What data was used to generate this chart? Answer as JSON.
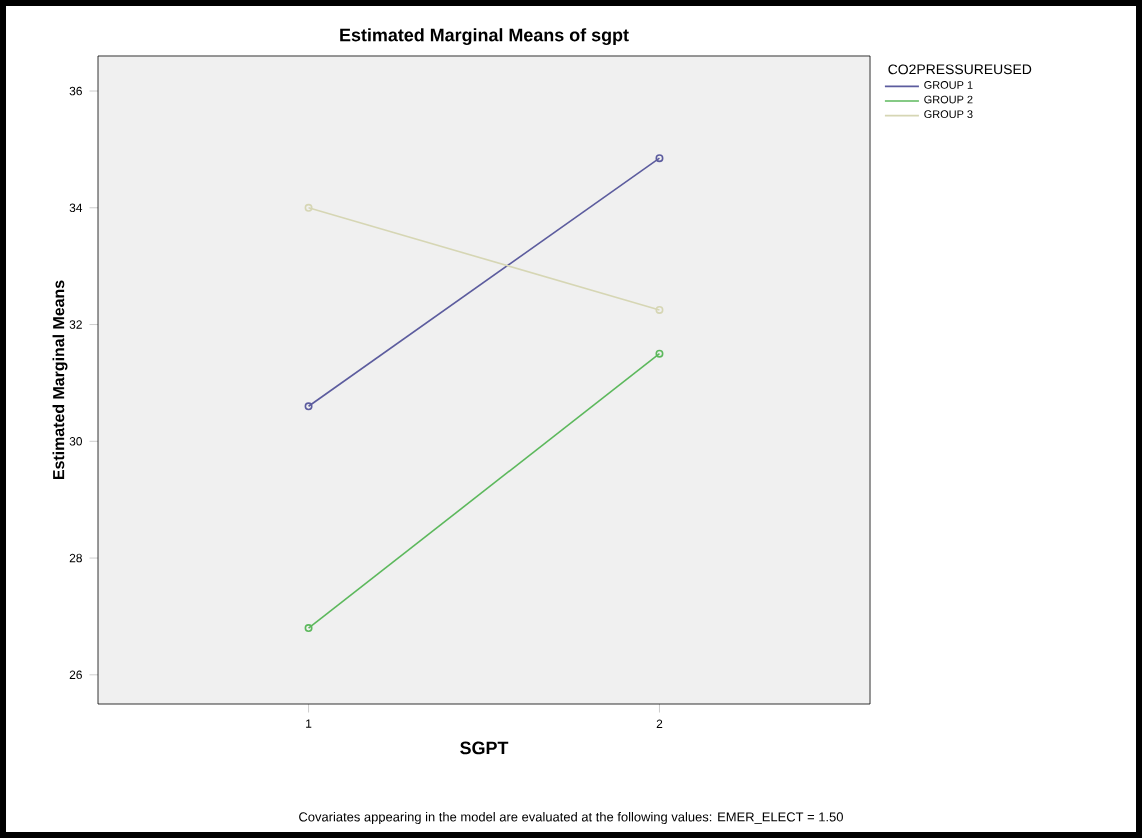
{
  "chart_data": {
    "type": "line",
    "title": "Estimated Marginal Means of sgpt",
    "xlabel": "SGPT",
    "ylabel": "Estimated Marginal Means",
    "legend_title": "CO2PRESSUREUSED",
    "categories": [
      "1",
      "2"
    ],
    "series": [
      {
        "name": "GROUP 1",
        "color": "#5c5c9e",
        "values": [
          30.6,
          34.85
        ]
      },
      {
        "name": "GROUP 2",
        "color": "#5cb85c",
        "values": [
          26.8,
          31.5
        ]
      },
      {
        "name": "GROUP 3",
        "color": "#d6d6b4",
        "values": [
          34.0,
          32.25
        ]
      }
    ],
    "ylim": [
      25.5,
      36.6
    ],
    "yticks": [
      26,
      28,
      30,
      32,
      34,
      36
    ],
    "marker": "circle",
    "legend": "top right",
    "annotations": [
      "Covariates appearing in the model are evaluated at the following values: EMER_ELECT = 1.50"
    ]
  }
}
